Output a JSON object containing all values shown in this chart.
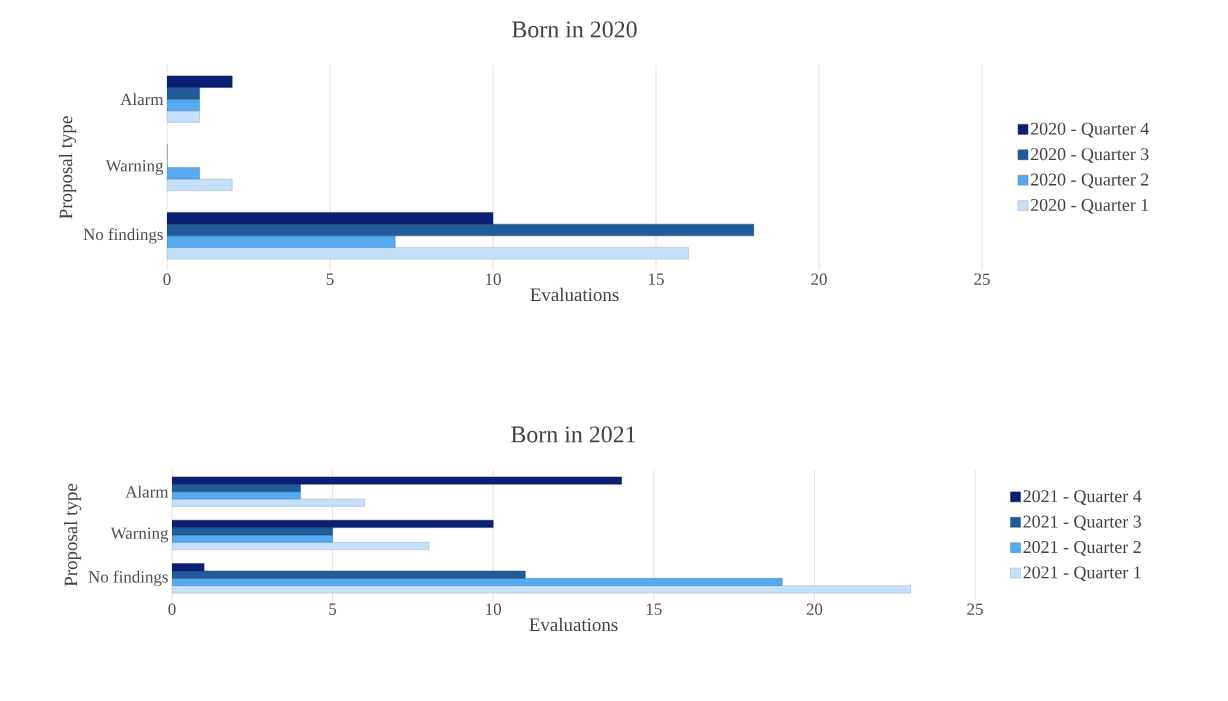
{
  "chart_data": [
    {
      "type": "bar",
      "orientation": "horizontal",
      "title": "Born in 2020",
      "xlabel": "Evaluations",
      "ylabel": "Proposal type",
      "categories": [
        "Alarm",
        "Warning",
        "No findings"
      ],
      "xlim": [
        0,
        25
      ],
      "xticks": [
        0,
        5,
        10,
        15,
        20,
        25
      ],
      "grid": "x",
      "legend": "right",
      "series": [
        {
          "name": "2020 - Quarter 1",
          "color": "#c5e0fa",
          "values": [
            1,
            2,
            16
          ]
        },
        {
          "name": "2020 - Quarter 2",
          "color": "#55aaf0",
          "values": [
            1,
            1,
            7
          ]
        },
        {
          "name": "2020 - Quarter 3",
          "color": "#1f5c99",
          "values": [
            1,
            0,
            18
          ]
        },
        {
          "name": "2020 - Quarter 4",
          "color": "#0b1f73",
          "values": [
            2,
            0,
            10
          ]
        }
      ]
    },
    {
      "type": "bar",
      "orientation": "horizontal",
      "title": "Born in 2021",
      "xlabel": "Evaluations",
      "ylabel": "Proposal type",
      "categories": [
        "Alarm",
        "Warning",
        "No findings"
      ],
      "xlim": [
        0,
        25
      ],
      "xticks": [
        0,
        5,
        10,
        15,
        20,
        25
      ],
      "grid": "x",
      "legend": "right",
      "series": [
        {
          "name": "2021 - Quarter 1",
          "color": "#c5e0fa",
          "values": [
            6,
            8,
            23
          ]
        },
        {
          "name": "2021 - Quarter 2",
          "color": "#55aaf0",
          "values": [
            4,
            5,
            19
          ]
        },
        {
          "name": "2021 - Quarter 3",
          "color": "#1f5c99",
          "values": [
            4,
            5,
            11
          ]
        },
        {
          "name": "2021 - Quarter 4",
          "color": "#0b1f73",
          "values": [
            14,
            10,
            1
          ]
        }
      ]
    }
  ]
}
